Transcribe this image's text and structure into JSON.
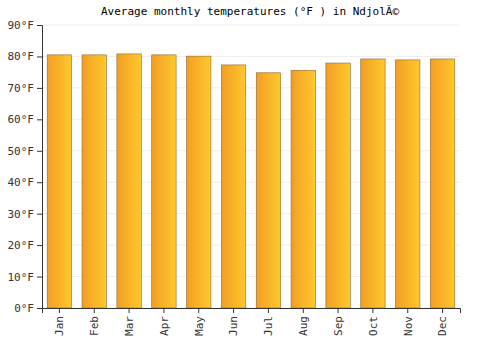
{
  "chart_data": {
    "type": "bar",
    "title": "Average monthly temperatures (°F ) in NdjolÃ©",
    "categories": [
      "Jan",
      "Feb",
      "Mar",
      "Apr",
      "May",
      "Jun",
      "Jul",
      "Aug",
      "Sep",
      "Oct",
      "Nov",
      "Dec"
    ],
    "values": [
      80.5,
      80.5,
      80.8,
      80.5,
      80.1,
      77.3,
      74.8,
      75.6,
      77.9,
      79.2,
      78.9,
      79.2
    ],
    "color": "#ffa726",
    "ylim": [
      0,
      90
    ],
    "yticks": [
      {
        "value": 0,
        "label": "0°F"
      },
      {
        "value": 10,
        "label": "10°F"
      },
      {
        "value": 20,
        "label": "20°F"
      },
      {
        "value": 30,
        "label": "30°F"
      },
      {
        "value": 40,
        "label": "40°F"
      },
      {
        "value": 50,
        "label": "50°F"
      },
      {
        "value": 60,
        "label": "60°F"
      },
      {
        "value": 70,
        "label": "70°F"
      },
      {
        "value": 80,
        "label": "80°F"
      },
      {
        "value": 90,
        "label": "90°F"
      }
    ],
    "grid": true
  }
}
